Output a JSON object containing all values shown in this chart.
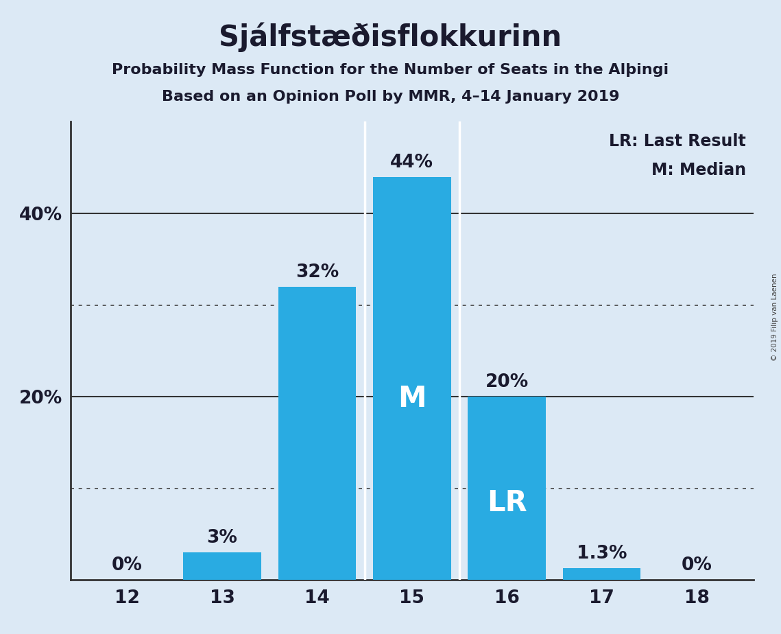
{
  "title": "Sjálfstæðisflokkurinn",
  "subtitle1": "Probability Mass Function for the Number of Seats in the Alþingi",
  "subtitle2": "Based on an Opinion Poll by MMR, 4–14 January 2019",
  "copyright": "© 2019 Filip van Laenen",
  "legend_lr": "LR: Last Result",
  "legend_m": "M: Median",
  "seats": [
    12,
    13,
    14,
    15,
    16,
    17,
    18
  ],
  "probabilities": [
    0.0,
    3.0,
    32.0,
    44.0,
    20.0,
    1.3,
    0.0
  ],
  "labels": [
    "0%",
    "3%",
    "32%",
    "44%",
    "20%",
    "1.3%",
    "0%"
  ],
  "bar_color": "#29ABE2",
  "background_color": "#DCE9F5",
  "median_seat": 15,
  "lr_seat": 16,
  "ylim_max": 50,
  "dotted_yticks": [
    10,
    30
  ],
  "solid_yticks": [
    20,
    40
  ],
  "title_fontsize": 30,
  "subtitle_fontsize": 16,
  "label_fontsize": 19,
  "tick_fontsize": 19,
  "legend_fontsize": 17,
  "bar_label_color_dark": "#1a1a2e",
  "bar_label_color_white": "#FFFFFF",
  "bar_width": 0.82
}
